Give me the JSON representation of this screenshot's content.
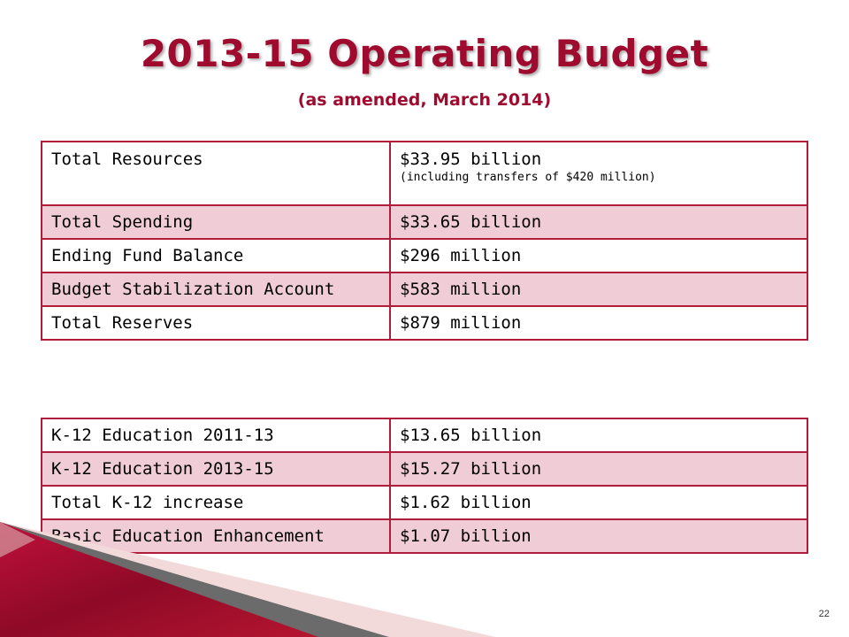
{
  "slide": {
    "title": "2013-15 Operating Budget",
    "subtitle": "(as amended, March 2014)",
    "page_number": "22"
  },
  "summary_table": [
    {
      "label": "Total Resources",
      "value": "$33.95 billion",
      "note": "(including transfers of $420 million)"
    },
    {
      "label": "Total Spending",
      "value": "$33.65 billion"
    },
    {
      "label": "Ending Fund Balance",
      "value": "$296 million"
    },
    {
      "label": "Budget Stabilization Account",
      "value": "$583 million"
    },
    {
      "label": "Total Reserves",
      "value": "$879 million"
    }
  ],
  "k12_table": [
    {
      "label": "K-12 Education 2011-13",
      "value": "$13.65 billion"
    },
    {
      "label": "K-12 Education 2013-15",
      "value": "$15.27 billion"
    },
    {
      "label": "Total K-12 increase",
      "value": "$1.62 billion"
    },
    {
      "label": "Basic Education Enhancement",
      "value": "$1.07 billion"
    }
  ],
  "colors": {
    "accent": "#9e0b2e",
    "border": "#b01d3a",
    "row_shade": "#f0cdd6"
  }
}
